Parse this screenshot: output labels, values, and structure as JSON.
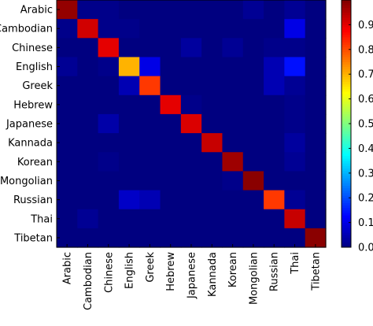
{
  "chart_data": {
    "type": "heatmap",
    "title": "",
    "xlabel": "",
    "ylabel": "",
    "labels": [
      "Arabic",
      "Cambodian",
      "Chinese",
      "English",
      "Greek",
      "Hebrew",
      "Japanese",
      "Kannada",
      "Korean",
      "Mongolian",
      "Russian",
      "Thai",
      "Tibetan"
    ],
    "colormap": "jet",
    "vmin": 0.0,
    "vmax": 1.0,
    "colorbar_ticks": [
      "0.0",
      "0.1",
      "0.2",
      "0.3",
      "0.4",
      "0.5",
      "0.6",
      "0.7",
      "0.8",
      "0.9"
    ],
    "matrix": [
      [
        0.98,
        0.01,
        0.01,
        0.0,
        0.0,
        0.0,
        0.0,
        0.0,
        0.0,
        0.02,
        0.0,
        0.02,
        0.0
      ],
      [
        0.01,
        0.92,
        0.01,
        0.01,
        0.0,
        0.0,
        0.0,
        0.0,
        0.0,
        0.0,
        0.0,
        0.1,
        0.0
      ],
      [
        0.0,
        0.0,
        0.9,
        0.0,
        0.0,
        0.0,
        0.03,
        0.0,
        0.02,
        0.0,
        0.01,
        0.01,
        0.0
      ],
      [
        0.02,
        0.0,
        0.01,
        0.7,
        0.1,
        0.0,
        0.0,
        0.0,
        0.0,
        0.0,
        0.05,
        0.14,
        0.0
      ],
      [
        0.0,
        0.0,
        0.0,
        0.05,
        0.82,
        0.0,
        0.0,
        0.0,
        0.0,
        0.0,
        0.05,
        0.02,
        0.0
      ],
      [
        0.0,
        0.0,
        0.0,
        0.0,
        0.0,
        0.9,
        0.01,
        0.0,
        0.0,
        0.0,
        0.0,
        0.01,
        0.0
      ],
      [
        0.0,
        0.0,
        0.04,
        0.0,
        0.0,
        0.0,
        0.91,
        0.0,
        0.0,
        0.0,
        0.0,
        0.01,
        0.0
      ],
      [
        0.0,
        0.0,
        0.0,
        0.0,
        0.0,
        0.0,
        0.0,
        0.93,
        0.0,
        0.0,
        0.0,
        0.03,
        0.0
      ],
      [
        0.0,
        0.0,
        0.01,
        0.0,
        0.0,
        0.0,
        0.0,
        0.0,
        0.97,
        0.0,
        0.0,
        0.02,
        0.0
      ],
      [
        0.0,
        0.0,
        0.0,
        0.0,
        0.0,
        0.0,
        0.0,
        0.0,
        0.01,
        0.99,
        0.0,
        0.0,
        0.0
      ],
      [
        0.0,
        0.0,
        0.0,
        0.07,
        0.05,
        0.0,
        0.0,
        0.0,
        0.0,
        0.0,
        0.82,
        0.02,
        0.0
      ],
      [
        0.0,
        0.02,
        0.0,
        0.0,
        0.0,
        0.0,
        0.0,
        0.0,
        0.0,
        0.0,
        0.0,
        0.93,
        0.0
      ],
      [
        0.0,
        0.0,
        0.0,
        0.0,
        0.0,
        0.0,
        0.0,
        0.0,
        0.0,
        0.0,
        0.0,
        0.0,
        0.99
      ]
    ]
  }
}
